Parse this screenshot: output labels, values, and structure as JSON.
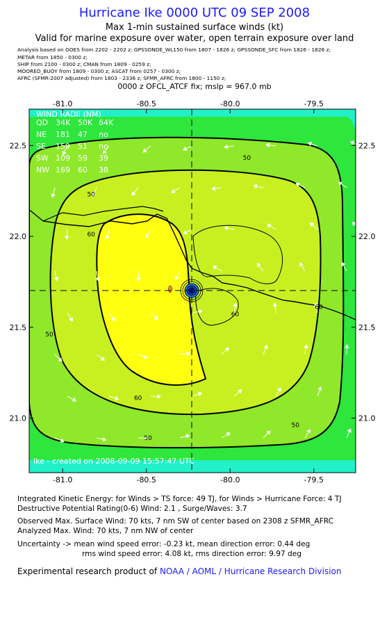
{
  "header": {
    "title": "Hurricane Ike 0000 UTC 09 SEP 2008",
    "subtitle1": "Max 1-min sustained surface winds (kt)",
    "subtitle2": "Valid for marine exposure over water, open terrain exposure over land"
  },
  "sources": [
    "Analysis based on  GOES from  2202 - 2202 z;  GPSSONDE_WL150 from 1807 - 1826 z;  GPSSONDE_SFC from 1826 - 1826 z;",
    "METAR from 1850 - 0300 z;",
    "SHIP from  2100 - 0300 z;  CMAN from 1809 - 0259 z;",
    "MOORED_BUOY from  1809 - 0300 z;   ASCAT from 0257 - 0300 z;",
    "AFRC (SFMR-2007 adjusted) from  1803 - 2336 z;  SFMR_AFRC from  1800 - 1150 z;"
  ],
  "fix_line": "0000 z OFCL_ATCF fix; mslp = 967.0 mb",
  "chart_data": {
    "type": "contour",
    "x_ticks": [
      "-81.0",
      "-80.5",
      "-80.0",
      "-79.5"
    ],
    "y_ticks": [
      "22.5",
      "22.0",
      "21.5",
      "21.0"
    ],
    "xlim": [
      -81.2,
      -79.25
    ],
    "ylim": [
      20.7,
      22.7
    ],
    "center": {
      "lon": -80.2,
      "lat": 21.7
    },
    "contour_labels": [
      {
        "text": "50",
        "lon": -79.9,
        "lat": 22.42
      },
      {
        "text": "50",
        "lon": -80.83,
        "lat": 22.22
      },
      {
        "text": "60",
        "lon": -80.83,
        "lat": 22.0
      },
      {
        "text": "60",
        "lon": -79.97,
        "lat": 21.56
      },
      {
        "text": "60",
        "lon": -80.55,
        "lat": 21.1
      },
      {
        "text": "50",
        "lon": -81.08,
        "lat": 21.45
      },
      {
        "text": "50",
        "lon": -80.49,
        "lat": 20.88
      },
      {
        "text": "60",
        "lon": -79.47,
        "lat": 21.6
      },
      {
        "text": "50",
        "lon": -79.61,
        "lat": 20.95
      }
    ],
    "wind_radii": {
      "title": "WIND RADII (NM)",
      "columns": [
        "QD",
        "34K",
        "50K",
        "64K"
      ],
      "rows": [
        [
          "NE",
          "181",
          "47",
          "no"
        ],
        [
          "SE",
          "159",
          "51",
          "no"
        ],
        [
          "SW",
          "109",
          "59",
          "39"
        ],
        [
          "NW",
          "169",
          "60",
          "38"
        ]
      ]
    },
    "watermark": "Ike  -  created on  2008-09-09  15:57:47  UTC",
    "colors": {
      "below_34": "#22f0c8",
      "band_34_50": "#2ee63c",
      "band_50_60": "#8fe82a",
      "band_60_64": "#c8f020",
      "above_64": "#ffff10",
      "contour": "#000000"
    }
  },
  "stats": {
    "line1": "Integrated Kinetic Energy:  for Winds > TS force: 49 TJ,  for Winds > Hurricane Force: 4 TJ",
    "line2": "Destructive Potential Rating(0-6)   Wind: 2.1 , Surge/Waves: 3.7",
    "line3": "Observed Max. Surface Wind: 70 kts, 7 nm SW of center based on 2308 z SFMR_AFRC",
    "line4": "Analyzed Max. Wind: 70 kts, 7 nm NW of center",
    "line5": "Uncertainty -> mean wind speed error:  -0.23 kt,   mean direction error: 0.44 deg",
    "line6": "rms wind speed error: 4.08 kt,   rms direction error: 9.97 deg"
  },
  "credit": {
    "prefix": "Experimental research product of",
    "org": "NOAA / AOML / Hurricane Research Division"
  }
}
